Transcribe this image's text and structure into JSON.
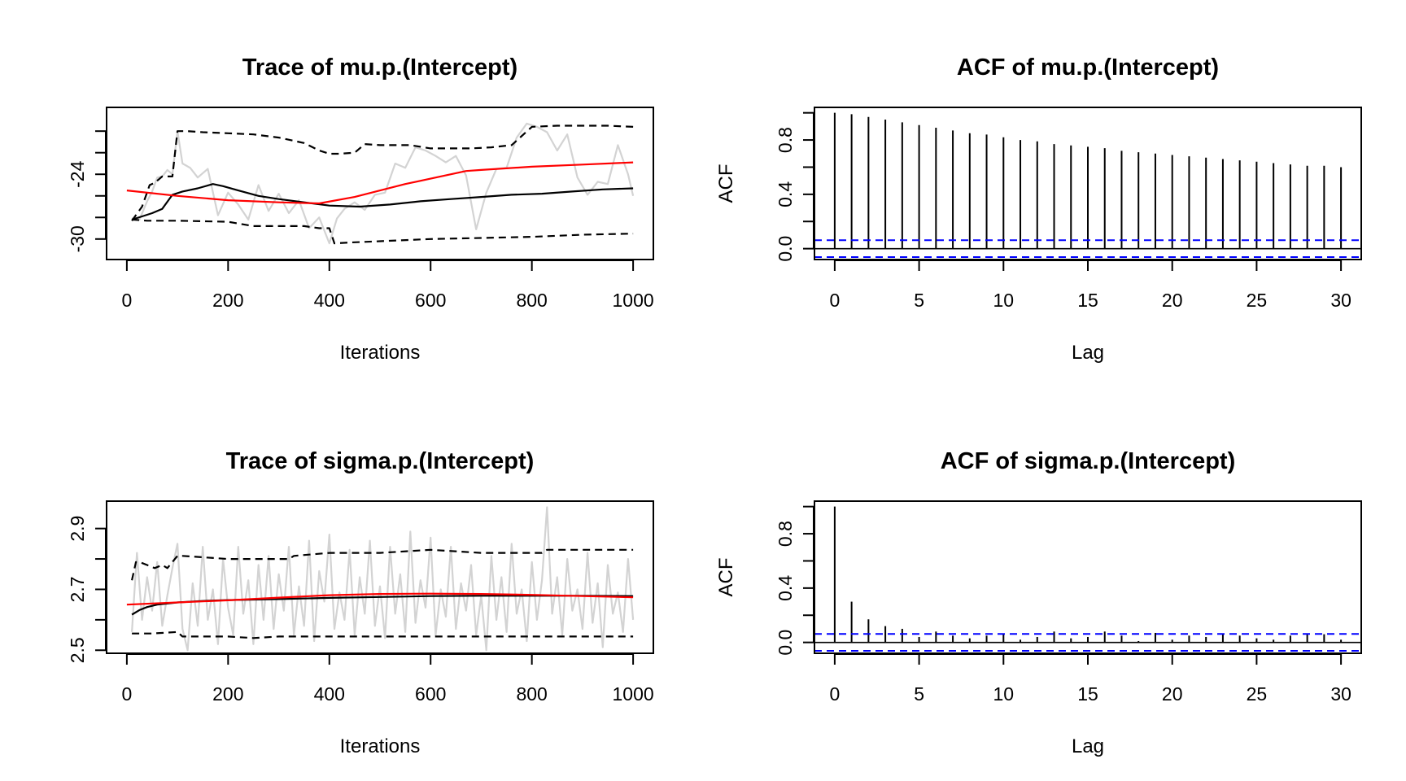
{
  "colors": {
    "background": "#ffffff",
    "trace": "#d3d3d3",
    "running_mean": "#000000",
    "quantile_band": "#000000",
    "smooth": "#ff0000",
    "acf_bar": "#000000",
    "confidence_band": "#0000ff"
  },
  "chart_data": [
    {
      "type": "line",
      "title": "Trace of mu.p.(Intercept)",
      "xlabel": "Iterations",
      "ylabel": "",
      "xlim": [
        -40,
        1040
      ],
      "ylim": [
        -31.9,
        -17.8
      ],
      "xticks": [
        0,
        200,
        400,
        600,
        800,
        1000
      ],
      "xtick_labels": [
        "0",
        "200",
        "400",
        "600",
        "800",
        "1000"
      ],
      "yticks": [
        -30,
        -28,
        -26,
        -24,
        -22,
        -20
      ],
      "ytick_labels": [
        "-30",
        "",
        "",
        "-24",
        "",
        ""
      ],
      "grid": false,
      "series": [
        {
          "role": "trace",
          "x": [
            10,
            25,
            40,
            50,
            60,
            70,
            80,
            90,
            100,
            110,
            125,
            140,
            160,
            180,
            200,
            220,
            240,
            260,
            280,
            300,
            320,
            340,
            360,
            380,
            400,
            415,
            430,
            450,
            470,
            490,
            510,
            530,
            550,
            570,
            590,
            610,
            630,
            650,
            670,
            690,
            710,
            730,
            750,
            770,
            790,
            810,
            830,
            850,
            870,
            890,
            910,
            930,
            950,
            970,
            990,
            1000
          ],
          "y": [
            -28.1,
            -28.2,
            -26.5,
            -25.6,
            -24.3,
            -24.2,
            -23.6,
            -24.0,
            -20.0,
            -23.0,
            -23.4,
            -24.3,
            -23.5,
            -27.8,
            -25.7,
            -26.8,
            -28.2,
            -25.0,
            -27.4,
            -25.8,
            -27.6,
            -26.4,
            -29.0,
            -28.0,
            -30.4,
            -28.1,
            -27.2,
            -26.6,
            -27.3,
            -25.9,
            -25.7,
            -23.0,
            -23.4,
            -21.5,
            -21.8,
            -22.3,
            -22.9,
            -22.3,
            -24.1,
            -29.1,
            -25.7,
            -23.5,
            -23.4,
            -20.6,
            -19.3,
            -19.6,
            -20.1,
            -21.8,
            -20.3,
            -24.3,
            -25.9,
            -24.7,
            -24.9,
            -21.3,
            -24.0,
            -26.0
          ]
        },
        {
          "role": "running_mean",
          "x": [
            10,
            30,
            50,
            70,
            90,
            110,
            140,
            170,
            190,
            220,
            260,
            300,
            350,
            400,
            460,
            520,
            580,
            640,
            700,
            760,
            820,
            880,
            940,
            1000
          ],
          "y": [
            -28.2,
            -27.9,
            -27.6,
            -27.2,
            -25.9,
            -25.6,
            -25.3,
            -24.9,
            -25.1,
            -25.5,
            -26.0,
            -26.3,
            -26.6,
            -26.9,
            -27.0,
            -26.8,
            -26.5,
            -26.3,
            -26.1,
            -25.9,
            -25.8,
            -25.6,
            -25.4,
            -25.3
          ]
        },
        {
          "role": "upper_quantile",
          "x": [
            10,
            30,
            45,
            55,
            70,
            90,
            100,
            120,
            150,
            200,
            250,
            300,
            350,
            380,
            400,
            420,
            450,
            470,
            500,
            530,
            560,
            600,
            640,
            680,
            720,
            760,
            800,
            850,
            900,
            950,
            1000
          ],
          "y": [
            -28.3,
            -27.0,
            -25.0,
            -24.8,
            -24.2,
            -24.2,
            -20.0,
            -20.0,
            -20.1,
            -20.2,
            -20.3,
            -20.6,
            -21.1,
            -21.8,
            -22.1,
            -22.1,
            -22.0,
            -21.2,
            -21.3,
            -21.3,
            -21.3,
            -21.6,
            -21.6,
            -21.6,
            -21.5,
            -21.3,
            -19.6,
            -19.5,
            -19.5,
            -19.5,
            -19.6
          ]
        },
        {
          "role": "lower_quantile",
          "x": [
            10,
            40,
            100,
            200,
            250,
            300,
            350,
            380,
            400,
            410,
            450,
            500,
            600,
            700,
            800,
            900,
            1000
          ],
          "y": [
            -28.2,
            -28.3,
            -28.3,
            -28.4,
            -28.8,
            -28.8,
            -28.8,
            -29.0,
            -29.0,
            -30.4,
            -30.3,
            -30.2,
            -30.0,
            -29.9,
            -29.8,
            -29.6,
            -29.5
          ]
        },
        {
          "role": "smooth",
          "x": [
            0,
            100,
            200,
            300,
            380,
            450,
            550,
            670,
            700,
            800,
            900,
            1000
          ],
          "y": [
            -25.5,
            -26.0,
            -26.4,
            -26.6,
            -26.7,
            -26.1,
            -24.9,
            -23.7,
            -23.6,
            -23.3,
            -23.1,
            -22.9
          ]
        }
      ]
    },
    {
      "type": "bar",
      "title": "ACF of mu.p.(Intercept)",
      "xlabel": "Lag",
      "ylabel": "ACF",
      "xlim": [
        -1.2,
        31.2
      ],
      "ylim": [
        -0.08,
        1.04
      ],
      "xticks": [
        0,
        5,
        10,
        15,
        20,
        25,
        30
      ],
      "xtick_labels": [
        "0",
        "5",
        "10",
        "15",
        "20",
        "25",
        "30"
      ],
      "yticks": [
        0,
        0.2,
        0.4,
        0.6,
        0.8,
        1.0
      ],
      "ytick_labels": [
        "0.0",
        "",
        "0.4",
        "",
        "0.8",
        ""
      ],
      "grid": false,
      "lags": [
        0,
        1,
        2,
        3,
        4,
        5,
        6,
        7,
        8,
        9,
        10,
        11,
        12,
        13,
        14,
        15,
        16,
        17,
        18,
        19,
        20,
        21,
        22,
        23,
        24,
        25,
        26,
        27,
        28,
        29,
        30
      ],
      "values": [
        1.0,
        0.99,
        0.97,
        0.95,
        0.93,
        0.91,
        0.89,
        0.87,
        0.85,
        0.84,
        0.82,
        0.8,
        0.79,
        0.77,
        0.76,
        0.75,
        0.74,
        0.72,
        0.71,
        0.7,
        0.69,
        0.68,
        0.67,
        0.66,
        0.65,
        0.64,
        0.63,
        0.62,
        0.61,
        0.61,
        0.6
      ],
      "confidence_bounds": [
        -0.062,
        0.062
      ]
    },
    {
      "type": "line",
      "title": "Trace of sigma.p.(Intercept)",
      "xlabel": "Iterations",
      "ylabel": "",
      "xlim": [
        -40,
        1040
      ],
      "ylim": [
        2.49,
        2.99
      ],
      "xticks": [
        0,
        200,
        400,
        600,
        800,
        1000
      ],
      "xtick_labels": [
        "0",
        "200",
        "400",
        "600",
        "800",
        "1000"
      ],
      "yticks": [
        2.5,
        2.6,
        2.7,
        2.8,
        2.9
      ],
      "ytick_labels": [
        "2.5",
        "",
        "2.7",
        "",
        "2.9"
      ],
      "grid": false,
      "series": [
        {
          "role": "trace",
          "x": [
            10,
            20,
            30,
            40,
            50,
            60,
            70,
            80,
            90,
            100,
            110,
            120,
            130,
            140,
            150,
            160,
            170,
            180,
            190,
            200,
            210,
            220,
            230,
            240,
            250,
            260,
            270,
            280,
            290,
            300,
            310,
            320,
            330,
            340,
            350,
            360,
            370,
            380,
            390,
            400,
            410,
            420,
            430,
            440,
            450,
            460,
            470,
            480,
            490,
            500,
            510,
            520,
            530,
            540,
            550,
            560,
            570,
            580,
            590,
            600,
            610,
            620,
            630,
            640,
            650,
            660,
            670,
            680,
            690,
            700,
            710,
            720,
            730,
            740,
            750,
            760,
            770,
            780,
            790,
            800,
            810,
            820,
            830,
            840,
            850,
            860,
            870,
            880,
            890,
            900,
            910,
            920,
            930,
            940,
            950,
            960,
            970,
            980,
            990,
            1000
          ],
          "y": [
            2.56,
            2.82,
            2.6,
            2.74,
            2.63,
            2.79,
            2.58,
            2.68,
            2.77,
            2.85,
            2.57,
            2.5,
            2.72,
            2.58,
            2.84,
            2.6,
            2.7,
            2.52,
            2.8,
            2.64,
            2.55,
            2.84,
            2.62,
            2.73,
            2.52,
            2.78,
            2.6,
            2.81,
            2.57,
            2.75,
            2.63,
            2.84,
            2.55,
            2.71,
            2.58,
            2.86,
            2.53,
            2.76,
            2.66,
            2.88,
            2.57,
            2.69,
            2.6,
            2.83,
            2.55,
            2.74,
            2.62,
            2.86,
            2.58,
            2.71,
            2.54,
            2.84,
            2.62,
            2.75,
            2.56,
            2.89,
            2.59,
            2.73,
            2.64,
            2.87,
            2.55,
            2.7,
            2.61,
            2.84,
            2.57,
            2.72,
            2.63,
            2.78,
            2.55,
            2.68,
            2.5,
            2.81,
            2.6,
            2.74,
            2.56,
            2.85,
            2.62,
            2.7,
            2.53,
            2.79,
            2.6,
            2.73,
            2.97,
            2.62,
            2.74,
            2.55,
            2.8,
            2.63,
            2.7,
            2.57,
            2.82,
            2.59,
            2.72,
            2.51,
            2.78,
            2.62,
            2.69,
            2.56,
            2.8,
            2.6
          ]
        },
        {
          "role": "running_mean",
          "x": [
            10,
            25,
            40,
            60,
            100,
            150,
            200,
            300,
            400,
            500,
            600,
            700,
            800,
            900,
            1000
          ],
          "y": [
            2.617,
            2.632,
            2.642,
            2.65,
            2.657,
            2.662,
            2.665,
            2.668,
            2.672,
            2.675,
            2.678,
            2.679,
            2.679,
            2.679,
            2.678
          ]
        },
        {
          "role": "upper_quantile",
          "x": [
            10,
            18,
            25,
            40,
            55,
            70,
            80,
            90,
            100,
            110,
            200,
            300,
            320,
            330,
            400,
            500,
            600,
            700,
            800,
            820,
            830,
            900,
            1000
          ],
          "y": [
            2.73,
            2.79,
            2.79,
            2.78,
            2.77,
            2.78,
            2.77,
            2.79,
            2.81,
            2.81,
            2.8,
            2.8,
            2.8,
            2.81,
            2.82,
            2.82,
            2.83,
            2.82,
            2.82,
            2.82,
            2.83,
            2.83,
            2.83
          ]
        },
        {
          "role": "lower_quantile",
          "x": [
            10,
            50,
            100,
            110,
            200,
            250,
            300,
            400,
            500,
            600,
            700,
            800,
            900,
            1000
          ],
          "y": [
            2.555,
            2.555,
            2.56,
            2.545,
            2.545,
            2.54,
            2.545,
            2.545,
            2.545,
            2.545,
            2.545,
            2.545,
            2.545,
            2.545
          ]
        },
        {
          "role": "smooth",
          "x": [
            0,
            100,
            200,
            300,
            400,
            500,
            600,
            700,
            800,
            900,
            1000
          ],
          "y": [
            2.65,
            2.657,
            2.664,
            2.673,
            2.681,
            2.685,
            2.686,
            2.685,
            2.682,
            2.678,
            2.674
          ]
        }
      ]
    },
    {
      "type": "bar",
      "title": "ACF of sigma.p.(Intercept)",
      "xlabel": "Lag",
      "ylabel": "ACF",
      "xlim": [
        -1.2,
        31.2
      ],
      "ylim": [
        -0.08,
        1.04
      ],
      "xticks": [
        0,
        5,
        10,
        15,
        20,
        25,
        30
      ],
      "xtick_labels": [
        "0",
        "5",
        "10",
        "15",
        "20",
        "25",
        "30"
      ],
      "yticks": [
        0,
        0.2,
        0.4,
        0.6,
        0.8,
        1.0
      ],
      "ytick_labels": [
        "0.0",
        "",
        "0.4",
        "",
        "0.8",
        ""
      ],
      "grid": false,
      "lags": [
        0,
        1,
        2,
        3,
        4,
        5,
        6,
        7,
        8,
        9,
        10,
        11,
        12,
        13,
        14,
        15,
        16,
        17,
        18,
        19,
        20,
        21,
        22,
        23,
        24,
        25,
        26,
        27,
        28,
        29,
        30
      ],
      "values": [
        1.0,
        0.3,
        0.17,
        0.12,
        0.1,
        0.04,
        0.08,
        0.05,
        0.03,
        0.05,
        0.06,
        0.02,
        0.04,
        0.08,
        0.03,
        0.04,
        0.08,
        0.05,
        0.01,
        0.07,
        0.02,
        0.05,
        0.04,
        0.06,
        0.05,
        0.03,
        0.02,
        0.05,
        0.06,
        0.06,
        0.02
      ],
      "confidence_bounds": [
        -0.062,
        0.062
      ]
    }
  ]
}
